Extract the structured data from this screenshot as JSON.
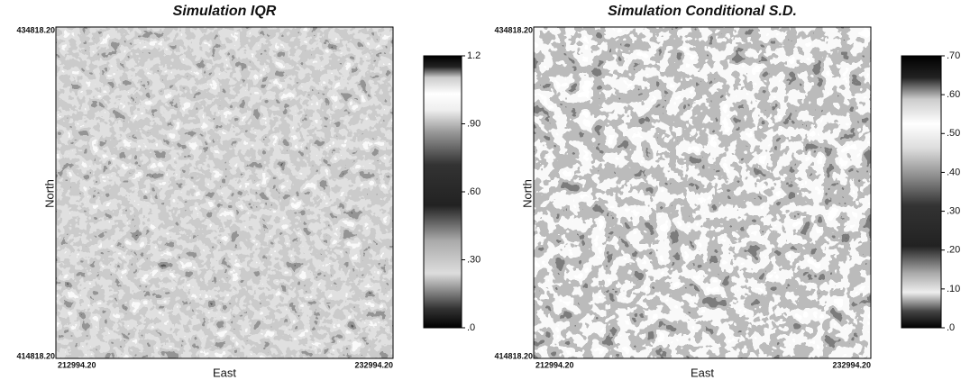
{
  "panels": [
    {
      "title": "Simulation IQR",
      "y_label": "North",
      "x_label": "East",
      "y_top": "434818.20",
      "y_bottom": "414818.20",
      "x_left": "212994.20",
      "x_right": "232994.20",
      "colorbar_ticks": [
        "1.2",
        ".90",
        ".60",
        ".30",
        ".0"
      ]
    },
    {
      "title": "Simulation Conditional S.D.",
      "y_label": "North",
      "x_label": "East",
      "y_top": "434818.20",
      "y_bottom": "414818.20",
      "x_left": "212994.20",
      "x_right": "232994.20",
      "colorbar_ticks": [
        ".70",
        ".60",
        ".50",
        ".40",
        ".30",
        ".20",
        ".10",
        ".0"
      ]
    }
  ]
}
